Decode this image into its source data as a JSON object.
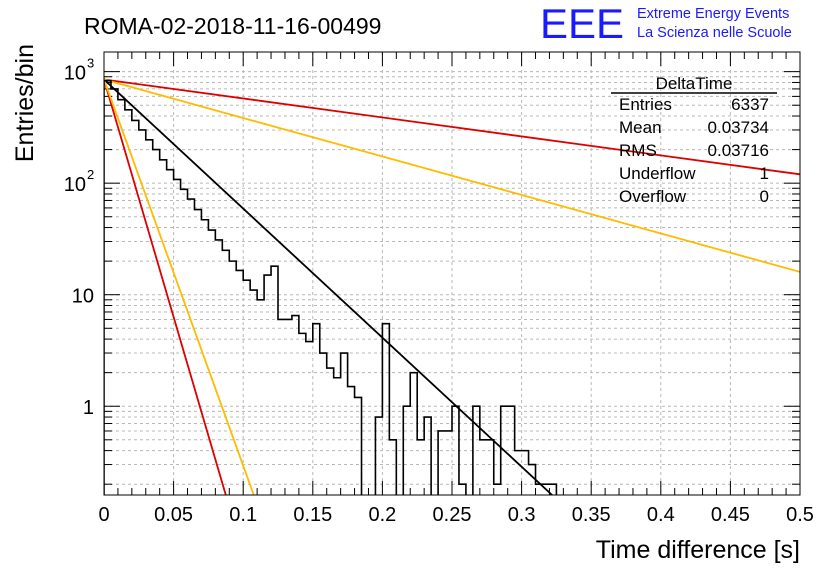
{
  "header": {
    "run_title": "ROMA-02-2018-11-16-00499",
    "logo_text": "EEE",
    "logo_line1": "Extreme Energy Events",
    "logo_line2": "La Scienza nelle Scuole",
    "logo_color": "#1a1aff"
  },
  "stats_box": {
    "title": "DeltaTime",
    "rows": [
      {
        "label": "Entries",
        "value": "6337"
      },
      {
        "label": "Mean",
        "value": "0.03734"
      },
      {
        "label": "RMS",
        "value": "0.03716"
      },
      {
        "label": "Underflow",
        "value": "1"
      },
      {
        "label": "Overflow",
        "value": "0"
      }
    ]
  },
  "chart_data": {
    "type": "histogram",
    "xlabel": "Time difference [s]",
    "ylabel": "Entries/bin",
    "xlim": [
      0,
      0.5
    ],
    "ylim": [
      0.16,
      1500
    ],
    "log_y": true,
    "grid": true,
    "x_ticks": [
      {
        "v": 0,
        "label": "0"
      },
      {
        "v": 0.05,
        "label": "0.05"
      },
      {
        "v": 0.1,
        "label": "0.1"
      },
      {
        "v": 0.15,
        "label": "0.15"
      },
      {
        "v": 0.2,
        "label": "0.2"
      },
      {
        "v": 0.25,
        "label": "0.25"
      },
      {
        "v": 0.3,
        "label": "0.3"
      },
      {
        "v": 0.35,
        "label": "0.35"
      },
      {
        "v": 0.4,
        "label": "0.4"
      },
      {
        "v": 0.45,
        "label": "0.45"
      },
      {
        "v": 0.5,
        "label": "0.5"
      }
    ],
    "y_ticks": [
      {
        "v": 1,
        "label": "1"
      },
      {
        "v": 10,
        "label": "10"
      },
      {
        "v": 100,
        "label": "10",
        "exp": "2"
      },
      {
        "v": 1000,
        "label": "10",
        "exp": "3"
      }
    ],
    "histogram": {
      "name": "DeltaTime",
      "color": "#000000",
      "bin_width": 0.005,
      "counts": [
        830,
        700,
        560,
        455,
        365,
        300,
        245,
        200,
        162,
        132,
        108,
        88,
        72,
        58,
        47,
        38,
        31,
        25,
        20,
        16.5,
        13.5,
        11,
        9,
        15,
        18,
        6,
        6,
        6.5,
        4.5,
        3.8,
        5.5,
        3,
        2.2,
        1.8,
        3,
        1.5,
        1.2,
        0,
        0,
        0.8,
        5.5,
        0.5,
        0,
        1,
        2,
        0.5,
        0.8,
        0,
        0.6,
        0.6,
        1,
        0.2,
        0.1,
        1,
        0.5,
        0.5,
        0.2,
        1,
        1,
        0.4,
        0.4,
        0.3,
        0.2,
        0.2,
        0.2
      ]
    },
    "series": [
      {
        "type": "line",
        "color": "#000000",
        "points": [
          [
            0,
            850
          ],
          [
            0.3219,
            0.16
          ]
        ]
      },
      {
        "type": "line",
        "color": "#dd0000",
        "points": [
          [
            0,
            850
          ],
          [
            0.5,
            120
          ]
        ]
      },
      {
        "type": "line",
        "color": "#ffbb00",
        "points": [
          [
            0,
            850
          ],
          [
            0.5,
            16
          ]
        ]
      },
      {
        "type": "line",
        "color": "#dd0000",
        "points": [
          [
            0,
            850
          ],
          [
            0.0875,
            0.16
          ]
        ]
      },
      {
        "type": "line",
        "color": "#ffbb00",
        "points": [
          [
            0,
            850
          ],
          [
            0.1076,
            0.16
          ]
        ]
      }
    ]
  }
}
